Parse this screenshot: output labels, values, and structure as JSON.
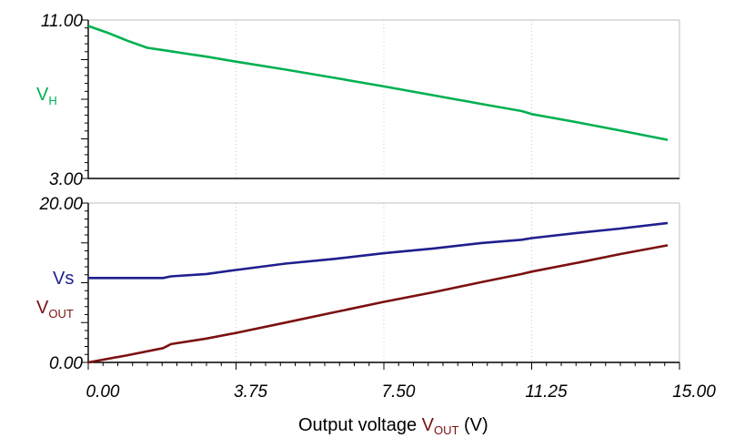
{
  "chart_data": [
    {
      "type": "line",
      "ylim": [
        3.0,
        11.0
      ],
      "y_tick_labels": [
        "11.00",
        "3.00"
      ],
      "y_ticks": [
        11.0,
        3.0
      ],
      "grid": "vertical dotted",
      "series": [
        {
          "name": "VH",
          "label_main": "V",
          "label_sub": "H",
          "color": "#00b050",
          "x": [
            0.0,
            0.5,
            1.0,
            1.5,
            2.0,
            2.5,
            3.0,
            3.75,
            5.0,
            6.25,
            7.5,
            8.75,
            10.0,
            11.0,
            11.25,
            12.5,
            13.5,
            14.7
          ],
          "y": [
            10.7,
            10.35,
            9.95,
            9.6,
            9.45,
            9.3,
            9.15,
            8.9,
            8.5,
            8.08,
            7.65,
            7.2,
            6.75,
            6.4,
            6.25,
            5.8,
            5.42,
            4.95
          ]
        }
      ]
    },
    {
      "type": "line",
      "ylim": [
        0.0,
        20.0
      ],
      "xlim": [
        0.0,
        15.0
      ],
      "y_tick_labels": [
        "20.00",
        "0.00"
      ],
      "y_ticks": [
        20.0,
        0.0
      ],
      "x_tick_labels": [
        "0.00",
        "3.75",
        "7.50",
        "11.25",
        "15.00"
      ],
      "x_ticks": [
        0.0,
        3.75,
        7.5,
        11.25,
        15.0
      ],
      "xlabel": {
        "prefix": "Output voltage ",
        "var_main": "V",
        "var_sub": "OUT",
        "suffix": " (V)"
      },
      "grid": "vertical dotted",
      "series": [
        {
          "name": "Vs",
          "label_main": "Vs",
          "label_sub": "",
          "color": "#1f1f8f",
          "x": [
            0.0,
            1.0,
            1.9,
            2.1,
            3.0,
            3.75,
            5.0,
            6.25,
            7.5,
            8.75,
            10.0,
            11.0,
            11.25,
            12.5,
            13.5,
            14.7
          ],
          "y": [
            10.6,
            10.6,
            10.6,
            10.8,
            11.1,
            11.6,
            12.4,
            13.0,
            13.7,
            14.3,
            15.0,
            15.4,
            15.6,
            16.3,
            16.8,
            17.5
          ]
        },
        {
          "name": "VOUT",
          "label_main": "V",
          "label_sub": "OUT",
          "color": "#7b1010",
          "x": [
            0.0,
            1.0,
            1.9,
            2.1,
            3.0,
            3.75,
            5.0,
            6.25,
            7.5,
            8.75,
            10.0,
            11.0,
            11.25,
            12.5,
            13.5,
            14.7
          ],
          "y": [
            0.0,
            0.9,
            1.8,
            2.3,
            3.0,
            3.7,
            5.0,
            6.3,
            7.6,
            8.8,
            10.1,
            11.1,
            11.4,
            12.6,
            13.6,
            14.7
          ]
        }
      ]
    }
  ]
}
